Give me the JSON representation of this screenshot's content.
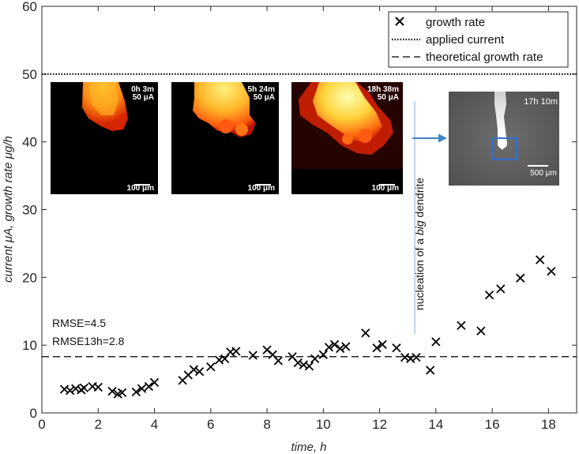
{
  "chart_data": {
    "type": "scatter",
    "title": "",
    "xlabel": "time, h",
    "ylabel": "current μA, growth rate μg/h",
    "xlim": [
      0,
      19
    ],
    "ylim": [
      0,
      60
    ],
    "xticks": [
      0,
      2,
      4,
      6,
      8,
      10,
      12,
      14,
      16,
      18
    ],
    "yticks": [
      0,
      10,
      20,
      30,
      40,
      50,
      60
    ],
    "grid": false,
    "legend_position": "top-right",
    "series": [
      {
        "name": "growth rate",
        "marker": "x",
        "x": [
          0.8,
          1.0,
          1.2,
          1.4,
          1.5,
          1.8,
          2.0,
          2.5,
          2.7,
          2.85,
          3.35,
          3.55,
          3.8,
          4.0,
          5.0,
          5.2,
          5.4,
          5.6,
          6.0,
          6.3,
          6.5,
          6.7,
          6.9,
          7.5,
          8.0,
          8.2,
          8.4,
          8.9,
          9.1,
          9.3,
          9.5,
          9.7,
          10.0,
          10.2,
          10.4,
          10.6,
          10.8,
          11.5,
          11.9,
          12.1,
          12.6,
          12.9,
          13.1,
          13.3,
          13.8,
          14.0,
          14.9,
          15.6,
          15.9,
          16.3,
          17.0,
          17.7,
          18.1
        ],
        "y": [
          3.5,
          3.3,
          3.6,
          3.4,
          3.7,
          3.9,
          3.8,
          3.2,
          2.8,
          3.0,
          3.1,
          3.6,
          3.9,
          4.5,
          4.8,
          5.6,
          6.4,
          6.1,
          6.8,
          7.8,
          8.0,
          9.0,
          9.1,
          8.5,
          9.3,
          8.6,
          7.7,
          8.3,
          7.4,
          7.1,
          6.9,
          8.0,
          8.6,
          9.7,
          10.1,
          9.5,
          9.8,
          11.8,
          9.6,
          10.1,
          9.6,
          8.2,
          8.0,
          8.2,
          6.3,
          10.5,
          12.9,
          12.1,
          17.4,
          18.3,
          19.9,
          22.6,
          20.9
        ]
      },
      {
        "name": "applied current",
        "style": "dotted",
        "y": 50
      },
      {
        "name": "theoretical growth rate",
        "style": "dashed",
        "y": 8.3
      }
    ],
    "annotations": {
      "rmse": "RMSE=4.5",
      "rmse13": "RMSE13h=2.8",
      "nucleation_prefix": "nucleation of a ",
      "nucleation_big": "big",
      "nucleation_suffix": " dendrite",
      "nucleation_time": 13.25
    },
    "insets": [
      {
        "time": "0h 3m",
        "current": "50 μA",
        "scale": "100 μm"
      },
      {
        "time": "5h 24m",
        "current": "50 μA",
        "scale": "100 μm"
      },
      {
        "time": "18h 38m",
        "current": "50 μA",
        "scale": "100 μm"
      },
      {
        "time": "17h 10m",
        "current": "",
        "scale": "500 μm"
      }
    ]
  },
  "colors": {
    "axis": "#262626",
    "marker": "#000000",
    "nucleation_line": "#9dc3e6",
    "arrow": "#3d85c6",
    "highlight_box": "#2f6fd0"
  }
}
